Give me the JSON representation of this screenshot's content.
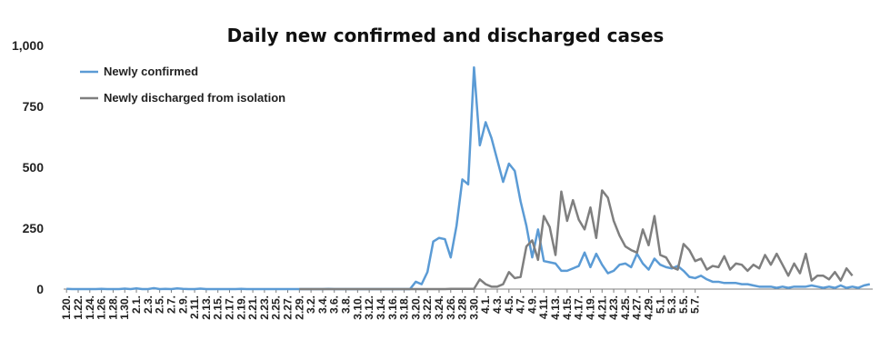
{
  "chart_data": {
    "type": "line",
    "title": "Daily new confirmed and discharged cases",
    "xlabel": "",
    "ylabel": "",
    "ylim": [
      0,
      1000
    ],
    "yticks": [
      "0",
      "250",
      "500",
      "750",
      "1,000"
    ],
    "ytick_values": [
      0,
      250,
      500,
      750,
      1000
    ],
    "grid": false,
    "legend_position": "top-left",
    "x_labels": [
      "1.20.",
      "1.22.",
      "1.24.",
      "1.26.",
      "1.28.",
      "1.30.",
      "2.1.",
      "2.3.",
      "2.5.",
      "2.7.",
      "2.9.",
      "2.11.",
      "2.13.",
      "2.15.",
      "2.17.",
      "2.19.",
      "2.21.",
      "2.23.",
      "2.25.",
      "2.27.",
      "2.29.",
      "3.2.",
      "3.4.",
      "3.6.",
      "3.8.",
      "3.10.",
      "3.12.",
      "3.14.",
      "3.16.",
      "3.18.",
      "3.20.",
      "3.22.",
      "3.24.",
      "3.26.",
      "3.28.",
      "3.30.",
      "4.1.",
      "4.3.",
      "4.5.",
      "4.7.",
      "4.9.",
      "4.11.",
      "4.13.",
      "4.15.",
      "4.17.",
      "4.19.",
      "4.21.",
      "4.23.",
      "4.25.",
      "4.27.",
      "4.29.",
      "5.1.",
      "5.3.",
      "5.5.",
      "5.7."
    ],
    "x_label_step": 2,
    "series": [
      {
        "name": "Newly confirmed",
        "color": "#5b9bd5",
        "start_index": 0,
        "values": [
          1,
          0,
          0,
          0,
          0,
          0,
          1,
          0,
          0,
          0,
          2,
          0,
          3,
          0,
          0,
          4,
          0,
          1,
          0,
          3,
          1,
          0,
          0,
          2,
          0,
          0,
          0,
          0,
          0,
          0,
          1,
          0,
          0,
          0,
          0,
          0,
          0,
          0,
          0,
          0,
          0,
          0,
          0,
          0,
          0,
          1,
          0,
          0,
          0,
          0,
          0,
          0,
          0,
          0,
          0,
          0,
          0,
          0,
          0,
          0,
          30,
          20,
          70,
          195,
          210,
          205,
          130,
          260,
          450,
          430,
          910,
          590,
          685,
          620,
          530,
          440,
          515,
          485,
          360,
          260,
          130,
          245,
          115,
          110,
          105,
          75,
          75,
          85,
          95,
          150,
          90,
          145,
          100,
          65,
          75,
          100,
          105,
          90,
          145,
          105,
          80,
          125,
          100,
          90,
          85,
          95,
          75,
          50,
          45,
          55,
          40,
          30,
          30,
          25,
          25,
          25,
          20,
          20,
          15,
          10,
          10,
          10,
          5,
          10,
          5,
          10,
          10,
          10,
          15,
          10,
          5,
          10,
          5,
          15,
          5,
          10,
          5,
          15,
          20
        ]
      },
      {
        "name": "Newly discharged from isolation",
        "color": "#7f7f7f",
        "start_index": 40,
        "values": [
          0,
          0,
          0,
          0,
          0,
          0,
          0,
          0,
          0,
          0,
          0,
          0,
          0,
          0,
          0,
          0,
          0,
          0,
          0,
          0,
          0,
          0,
          0,
          0,
          0,
          0,
          0,
          0,
          0,
          0,
          0,
          0,
          0,
          0,
          0,
          0,
          0,
          0,
          0,
          0,
          0,
          0,
          0,
          0,
          0,
          0,
          0,
          0,
          0,
          0,
          0,
          0,
          0,
          0,
          0,
          0,
          0,
          0,
          0,
          0,
          0,
          0,
          0,
          0,
          0,
          0,
          1,
          1,
          1,
          1,
          1,
          40,
          20,
          10,
          10,
          20,
          70,
          45,
          50,
          175,
          200,
          120,
          300,
          255,
          140,
          400,
          280,
          365,
          285,
          245,
          335,
          210,
          405,
          375,
          280,
          220,
          175,
          160,
          150,
          245,
          180,
          300,
          140,
          130,
          90,
          80,
          185,
          160,
          115,
          125,
          80,
          95,
          90,
          135,
          80,
          105,
          100,
          75,
          100,
          85,
          140,
          100,
          145,
          100,
          55,
          105,
          65,
          145,
          35,
          55,
          55,
          40,
          70,
          35,
          85,
          55
        ]
      }
    ]
  }
}
